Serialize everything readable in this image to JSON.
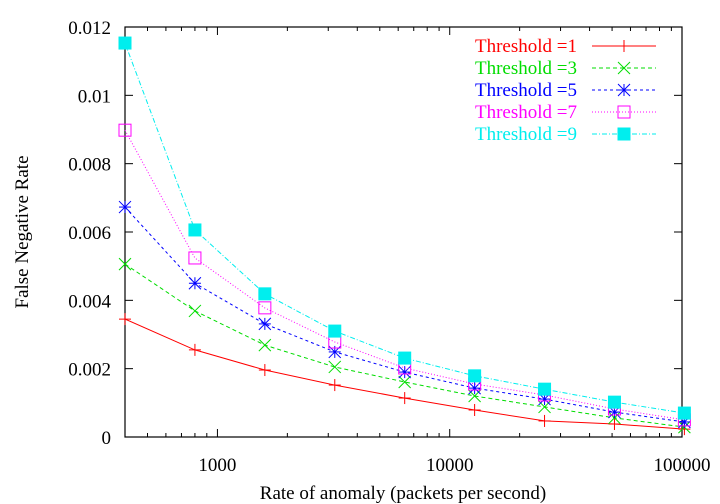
{
  "chart_data": {
    "type": "line",
    "title": "",
    "xlabel": "Rate of anomaly (packets per second)",
    "ylabel": "False Negative Rate",
    "xscale": "log",
    "xlim": [
      400,
      100000
    ],
    "ylim": [
      0,
      0.012
    ],
    "grid": false,
    "legend_position": "top-right",
    "xticks": [
      {
        "value": 1000,
        "label": "1000"
      },
      {
        "value": 10000,
        "label": "10000"
      },
      {
        "value": 100000,
        "label": "100000"
      }
    ],
    "yticks": [
      {
        "value": 0,
        "label": "0"
      },
      {
        "value": 0.002,
        "label": "0.002"
      },
      {
        "value": 0.004,
        "label": "0.004"
      },
      {
        "value": 0.006,
        "label": "0.006"
      },
      {
        "value": 0.008,
        "label": "0.008"
      },
      {
        "value": 0.01,
        "label": "0.01"
      },
      {
        "value": 0.012,
        "label": "0.012"
      }
    ],
    "x": [
      400,
      800,
      1600,
      3200,
      6400,
      12800,
      25600,
      51200,
      102400
    ],
    "series": [
      {
        "name": "Threshold =1",
        "color": "#ff0000",
        "marker": "plus",
        "dash": "solid",
        "values": [
          0.00345,
          0.00255,
          0.00196,
          0.00152,
          0.00114,
          0.00079,
          0.00047,
          0.00038,
          0.00023
        ]
      },
      {
        "name": "Threshold =3",
        "color": "#00dd00",
        "marker": "cross",
        "dash": "dashed",
        "values": [
          0.00506,
          0.00369,
          0.00269,
          0.00205,
          0.00161,
          0.0012,
          0.00088,
          0.00056,
          0.00029
        ]
      },
      {
        "name": "Threshold =5",
        "color": "#0000ff",
        "marker": "star",
        "dash": "short-dashed",
        "values": [
          0.00673,
          0.0045,
          0.00331,
          0.00249,
          0.0019,
          0.00143,
          0.00111,
          0.00073,
          0.00044
        ]
      },
      {
        "name": "Threshold =7",
        "color": "#ff00ff",
        "marker": "open-square",
        "dash": "dotted",
        "values": [
          0.00898,
          0.00524,
          0.00378,
          0.00278,
          0.00202,
          0.00155,
          0.00123,
          0.00082,
          0.0005
        ]
      },
      {
        "name": "Threshold =9",
        "color": "#00eeee",
        "marker": "filled-square",
        "dash": "dash-dot",
        "values": [
          0.01153,
          0.00606,
          0.00419,
          0.0031,
          0.00231,
          0.00179,
          0.0014,
          0.00102,
          0.0007
        ]
      }
    ]
  }
}
